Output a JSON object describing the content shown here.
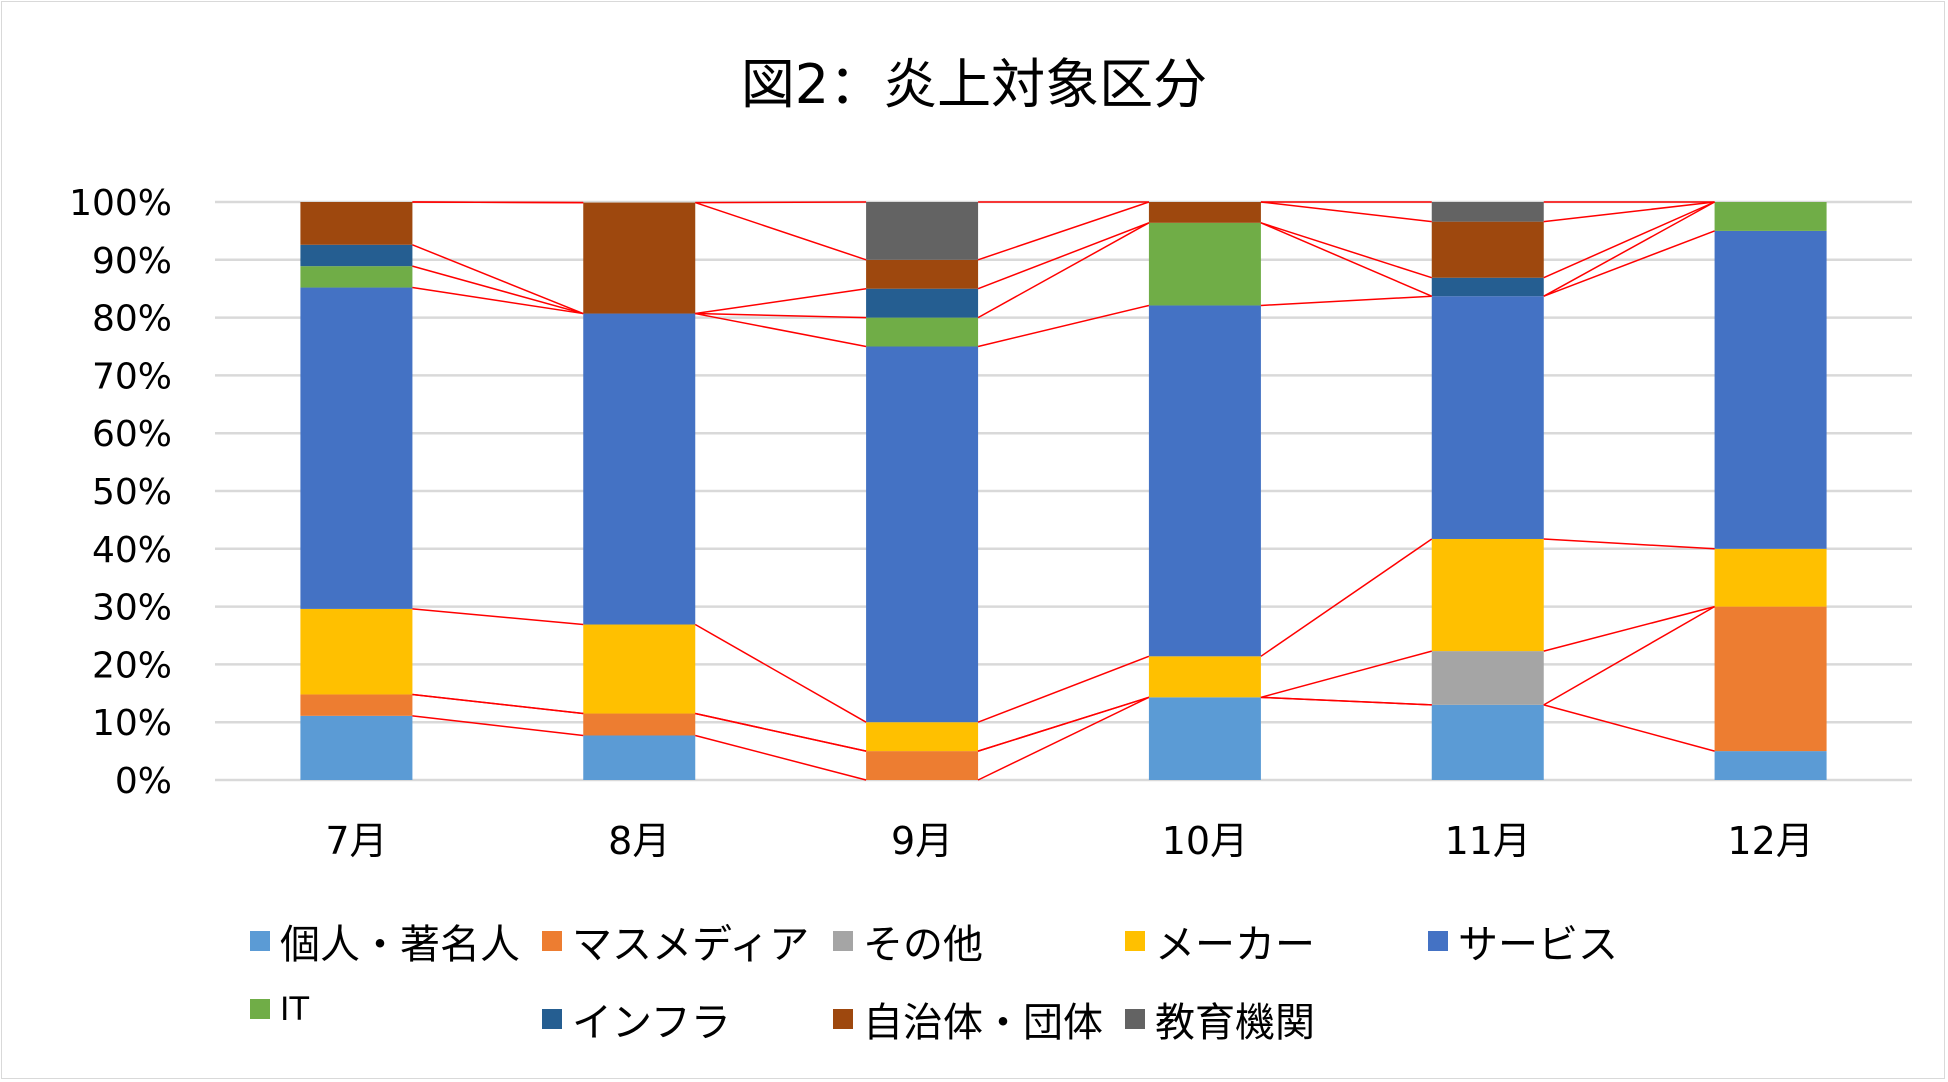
{
  "chart_data": {
    "type": "bar",
    "stacked": true,
    "title": "図2：炎上対象区分",
    "xlabel": "",
    "ylabel": "",
    "ylim": [
      0,
      100
    ],
    "y_ticks": [
      "0%",
      "10%",
      "20%",
      "30%",
      "40%",
      "50%",
      "60%",
      "70%",
      "80%",
      "90%",
      "100%"
    ],
    "grid": true,
    "legend_position": "bottom",
    "series_connector_lines": true,
    "categories": [
      "7月",
      "8月",
      "9月",
      "10月",
      "11月",
      "12月"
    ],
    "series": [
      {
        "name": "個人・著名人",
        "color": "#5b9bd5",
        "values": [
          11.1,
          7.7,
          0,
          14.3,
          13.0,
          5.0
        ]
      },
      {
        "name": "マスメディア",
        "color": "#ed7d31",
        "values": [
          3.7,
          3.8,
          5.0,
          0,
          0,
          25.0
        ]
      },
      {
        "name": "その他",
        "color": "#a5a5a5",
        "values": [
          0,
          0,
          0,
          0,
          9.3,
          0
        ]
      },
      {
        "name": "メーカー",
        "color": "#ffc000",
        "values": [
          14.8,
          15.4,
          5.0,
          7.1,
          19.4,
          10.0
        ]
      },
      {
        "name": "サービス",
        "color": "#4472c4",
        "values": [
          55.6,
          53.8,
          65.0,
          60.7,
          42.0,
          55.0
        ]
      },
      {
        "name": "IT",
        "color": "#70ad47",
        "values": [
          3.7,
          0,
          5.0,
          14.3,
          0,
          5.0
        ]
      },
      {
        "name": "インフラ",
        "color": "#255e91",
        "values": [
          3.7,
          0,
          5.0,
          0,
          3.2,
          0
        ]
      },
      {
        "name": "自治体・団体",
        "color": "#9e480e",
        "values": [
          7.4,
          19.2,
          5.0,
          3.6,
          9.7,
          0
        ]
      },
      {
        "name": "教育機関",
        "color": "#636363",
        "values": [
          0,
          0,
          10.0,
          0,
          3.4,
          0
        ]
      }
    ]
  }
}
